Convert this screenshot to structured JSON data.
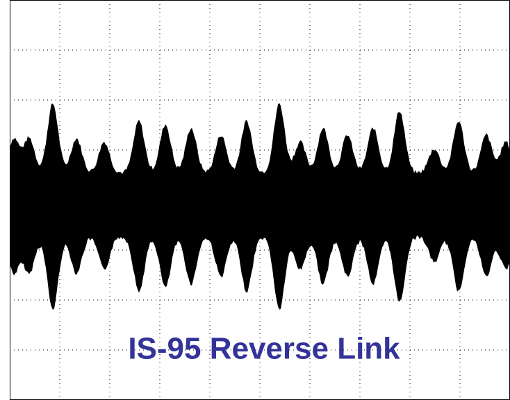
{
  "title": "IS-95 Reverse Link"
}
